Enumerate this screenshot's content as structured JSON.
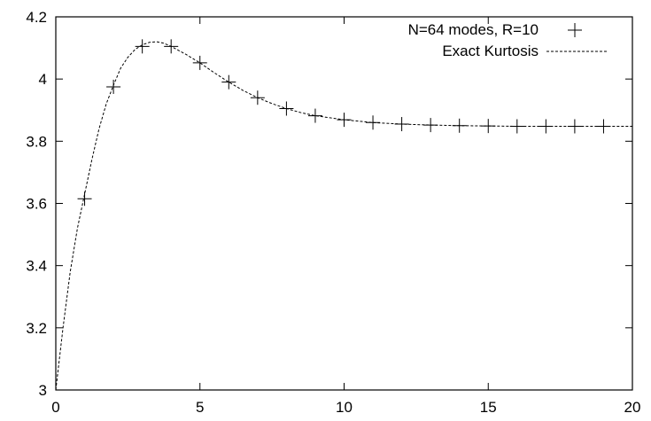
{
  "chart_data": {
    "type": "scatter",
    "title": "",
    "xlabel": "",
    "ylabel": "",
    "xlim": [
      0,
      20
    ],
    "ylim": [
      3,
      4.2
    ],
    "grid": false,
    "legend_position": "top-right",
    "x_ticks": [
      "0",
      "5",
      "10",
      "15",
      "20"
    ],
    "y_ticks": [
      "3",
      "3.2",
      "3.4",
      "3.6",
      "3.8",
      "4",
      "4.2"
    ],
    "series": [
      {
        "name": "N=64 modes, R=10",
        "marker": "plus",
        "color": "#000000",
        "x": [
          1,
          2,
          3,
          4,
          5,
          6,
          7,
          8,
          9,
          10,
          11,
          12,
          13,
          14,
          15,
          16,
          17,
          18,
          19
        ],
        "y": [
          3.615,
          3.975,
          4.105,
          4.105,
          4.052,
          3.99,
          3.94,
          3.905,
          3.882,
          3.869,
          3.86,
          3.855,
          3.852,
          3.85,
          3.849,
          3.848,
          3.848,
          3.848,
          3.848
        ]
      },
      {
        "name": "Exact Kurtosis",
        "style": "dashed",
        "color": "#000000",
        "x": [
          0,
          0.25,
          0.5,
          0.75,
          1,
          1.25,
          1.5,
          1.75,
          2,
          2.25,
          2.5,
          2.75,
          3,
          3.25,
          3.5,
          3.75,
          4,
          4.5,
          5,
          5.5,
          6,
          6.5,
          7,
          7.5,
          8,
          8.5,
          9,
          10,
          11,
          12,
          13,
          14,
          15,
          16,
          17,
          18,
          19,
          20
        ],
        "y": [
          3.0,
          3.2,
          3.38,
          3.52,
          3.63,
          3.74,
          3.84,
          3.92,
          3.98,
          4.035,
          4.07,
          4.095,
          4.11,
          4.118,
          4.12,
          4.115,
          4.105,
          4.08,
          4.052,
          4.02,
          3.99,
          3.963,
          3.94,
          3.921,
          3.905,
          3.892,
          3.882,
          3.869,
          3.86,
          3.855,
          3.852,
          3.85,
          3.849,
          3.848,
          3.848,
          3.848,
          3.848,
          3.848
        ]
      }
    ]
  }
}
